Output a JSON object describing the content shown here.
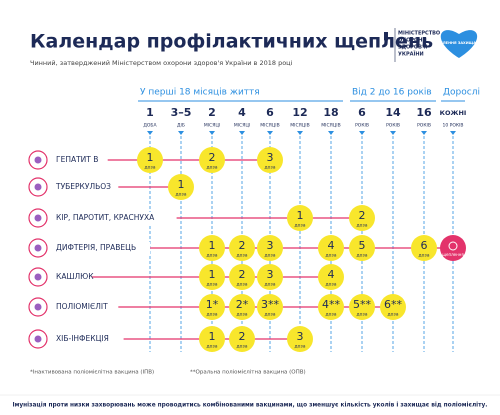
{
  "header": {
    "title": "Календар профілактичних щеплень",
    "subtitle": "Чинний, затверджений Міністерством охорони здоров'я України в 2018 році",
    "ministry": [
      "МІНІСТЕРСТВО",
      "ОХОРОНИ",
      "ЗДОРОВ'Я",
      "УКРАЇНИ"
    ],
    "badge": "ЩЕПЛЕННЯ ЗАХИЩАЮТЬ"
  },
  "groups": [
    {
      "label": "У перші 18 місяців життя",
      "columns": [
        {
          "number": "1",
          "unit": "ДОБА"
        },
        {
          "number": "3–5",
          "unit": "ДІБ"
        },
        {
          "number": "2",
          "unit": "МІСЯЦІ"
        },
        {
          "number": "4",
          "unit": "МІСЯЦІ"
        },
        {
          "number": "6",
          "unit": "МІСЯЦІВ"
        },
        {
          "number": "12",
          "unit": "МІСЯЦІВ"
        },
        {
          "number": "18",
          "unit": "МІСЯЦІВ"
        }
      ]
    },
    {
      "label": "Від 2 до 16 років",
      "columns": [
        {
          "number": "6",
          "unit": "РОКІВ"
        },
        {
          "number": "14",
          "unit": "РОКІВ"
        },
        {
          "number": "16",
          "unit": "РОКІВ"
        }
      ]
    },
    {
      "label": "Дорослі",
      "columns": [
        {
          "number": "КОЖНІ",
          "unit": "10 РОКІВ"
        }
      ]
    }
  ],
  "dose_word": "доза",
  "rows": [
    {
      "label": "ГЕПАТИТ В",
      "doses": [
        "1",
        null,
        "2",
        null,
        "3",
        null,
        null,
        null,
        null,
        null,
        null
      ]
    },
    {
      "label": "ТУБЕРКУЛЬОЗ",
      "doses": [
        null,
        "1",
        null,
        null,
        null,
        null,
        null,
        null,
        null,
        null,
        null
      ]
    },
    {
      "label": "КІР, ПАРОТИТ, КРАСНУХА",
      "doses": [
        null,
        null,
        null,
        null,
        null,
        "1",
        null,
        "2",
        null,
        null,
        null
      ]
    },
    {
      "label": "ДИФТЕРІЯ, ПРАВЕЦЬ",
      "doses": [
        null,
        null,
        "1",
        "2",
        "3",
        null,
        "4",
        "5",
        null,
        "6",
        null
      ],
      "booster": "щеплення"
    },
    {
      "label": "КАШЛЮК",
      "doses": [
        null,
        null,
        "1",
        "2",
        "3",
        null,
        "4",
        null,
        null,
        null,
        null
      ]
    },
    {
      "label": "ПОЛІОМІЄЛІТ",
      "doses": [
        null,
        null,
        "1*",
        "2*",
        "3**",
        null,
        "4**",
        "5**",
        "6**",
        null,
        null
      ]
    },
    {
      "label": "ХІБ-ІНФЕКЦІЯ",
      "doses": [
        null,
        null,
        "1",
        "2",
        null,
        "3",
        null,
        null,
        null,
        null,
        null
      ]
    }
  ],
  "footnotes": [
    "*Інактивована поліомієлітна вакцина (ІПВ)",
    "**Оральна поліомієлітна вакцина (ОПВ)"
  ],
  "bottom_note": "Імунізація проти низки захворювань може проводитись комбінованими вакцинами, що зменшує кількість уколів і захищає від поліомієліту."
}
